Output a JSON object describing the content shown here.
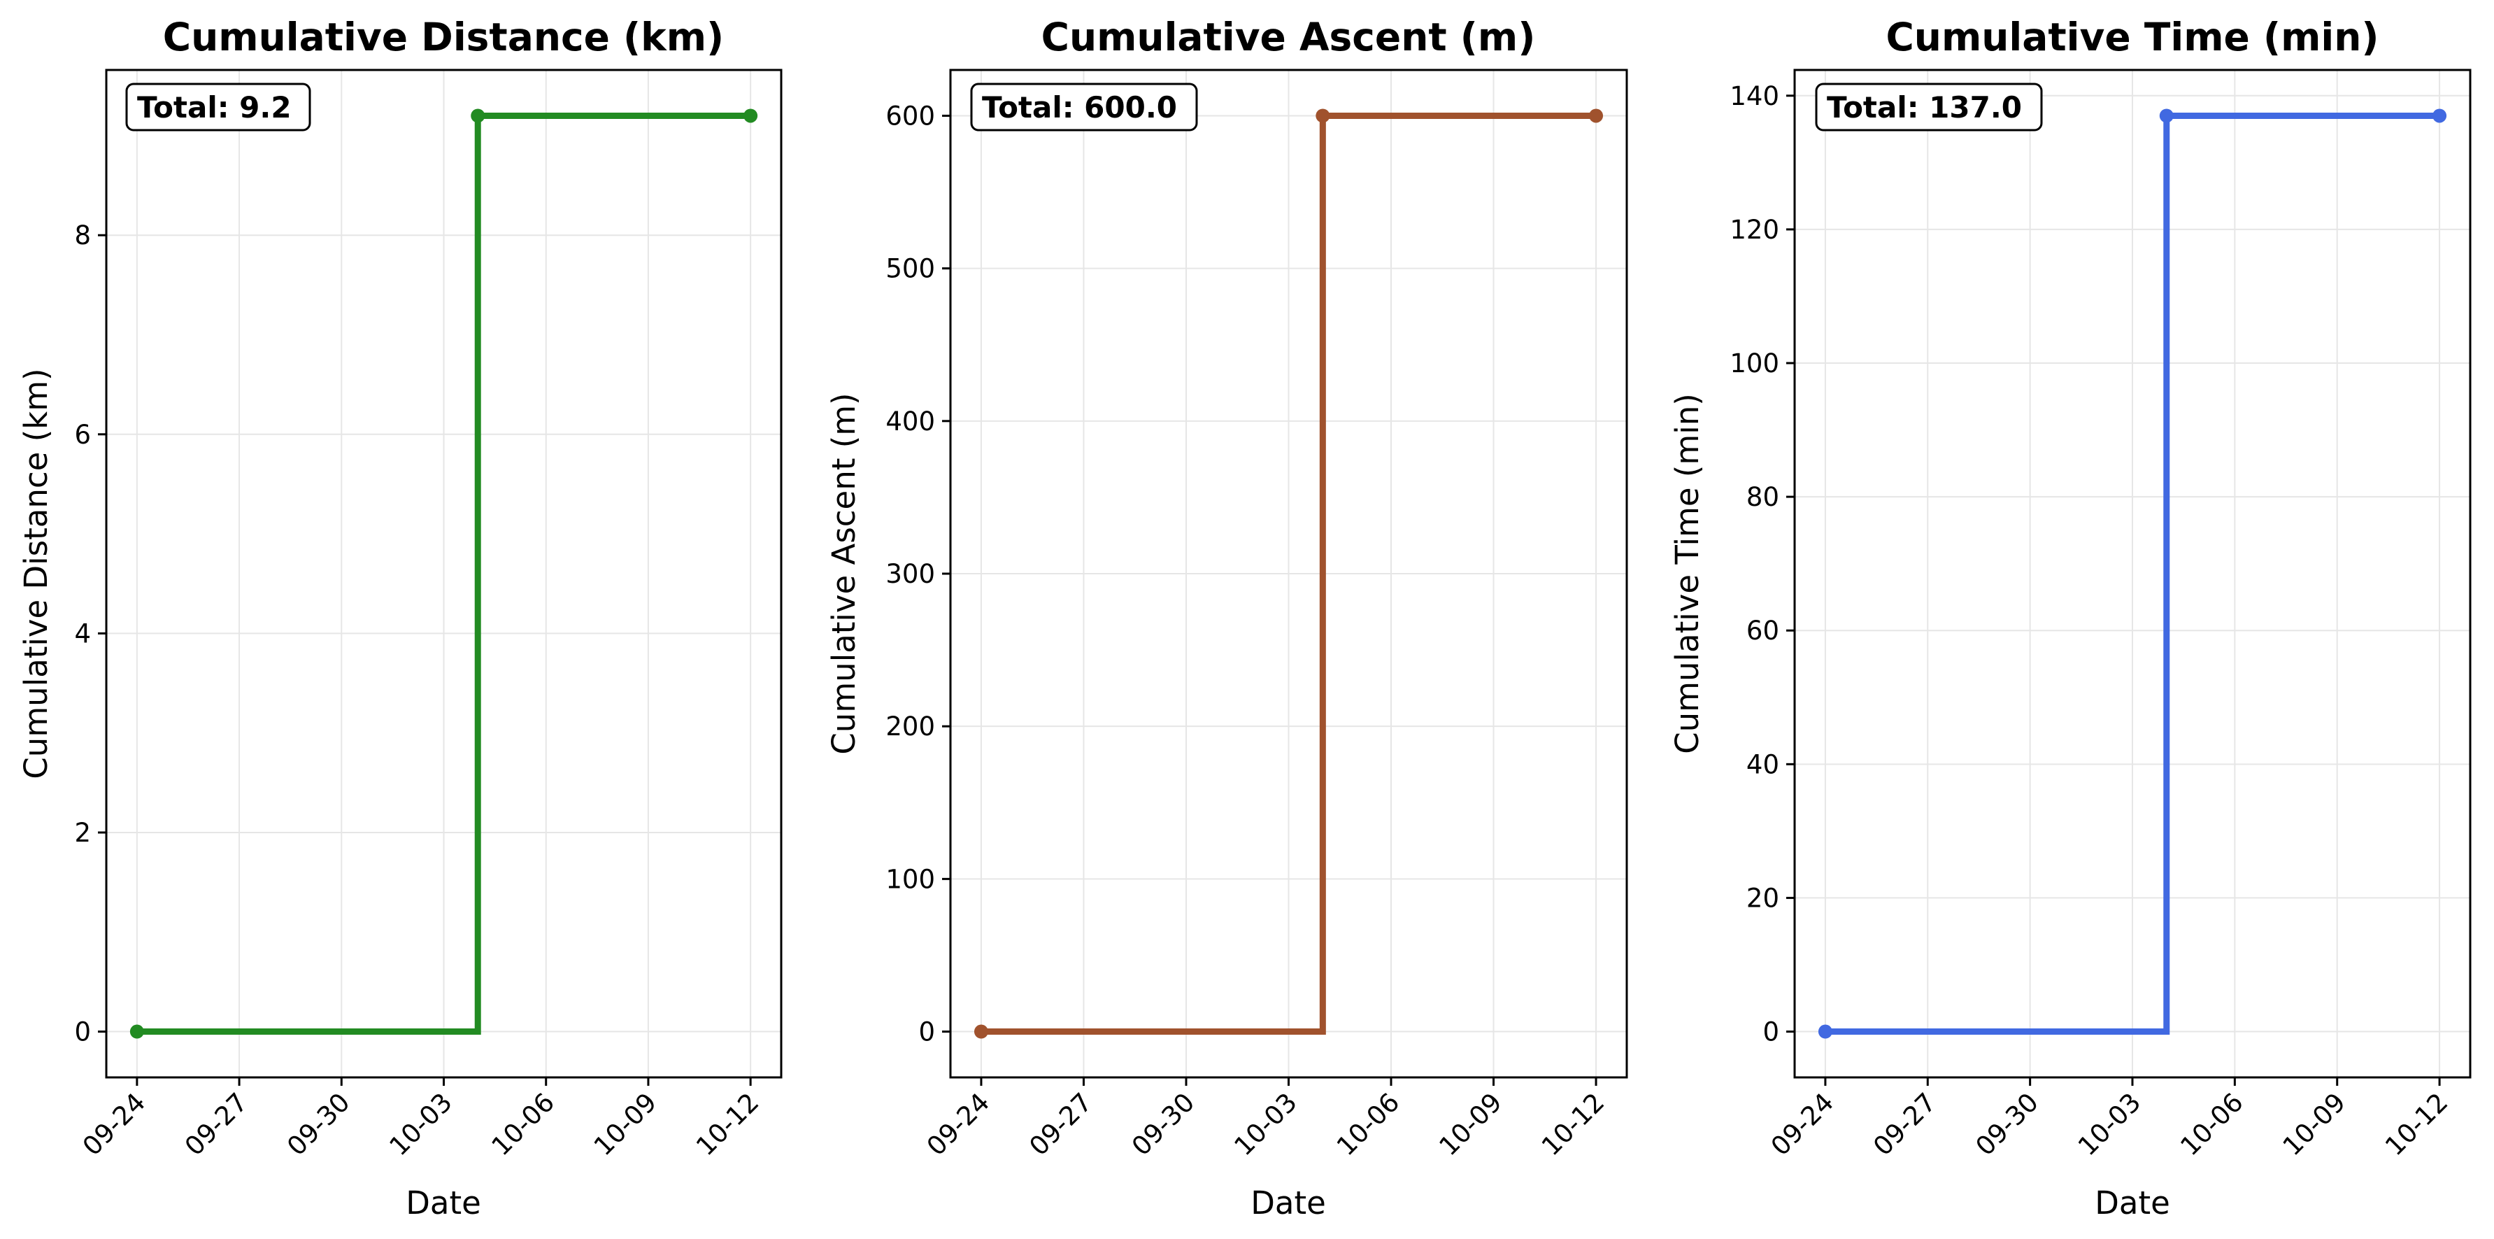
{
  "chart_data": [
    {
      "type": "line",
      "title": "Cumulative Distance (km)",
      "xlabel": "Date",
      "ylabel": "Cumulative Distance (km)",
      "color": "#228b22",
      "x": [
        "09-24",
        "10-04",
        "10-12"
      ],
      "y": [
        0,
        9.2,
        9.2
      ],
      "step": "post",
      "x_ticks": [
        "09-24",
        "09-27",
        "09-30",
        "10-03",
        "10-06",
        "10-09",
        "10-12"
      ],
      "y_ticks": [
        0,
        2,
        4,
        6,
        8
      ],
      "y_tick_labels": [
        "0",
        "2",
        "4",
        "6",
        "8"
      ],
      "ylim": [
        -0.46,
        9.66
      ],
      "total_label": "Total: 9.2",
      "grid": true
    },
    {
      "type": "line",
      "title": "Cumulative Ascent (m)",
      "xlabel": "Date",
      "ylabel": "Cumulative Ascent (m)",
      "color": "#a0522d",
      "x": [
        "09-24",
        "10-04",
        "10-12"
      ],
      "y": [
        0,
        600,
        600
      ],
      "step": "post",
      "x_ticks": [
        "09-24",
        "09-27",
        "09-30",
        "10-03",
        "10-06",
        "10-09",
        "10-12"
      ],
      "y_ticks": [
        0,
        100,
        200,
        300,
        400,
        500,
        600
      ],
      "y_tick_labels": [
        "0",
        "100",
        "200",
        "300",
        "400",
        "500",
        "600"
      ],
      "ylim": [
        -30,
        630
      ],
      "total_label": "Total: 600.0",
      "grid": true
    },
    {
      "type": "line",
      "title": "Cumulative Time (min)",
      "xlabel": "Date",
      "ylabel": "Cumulative Time (min)",
      "color": "#4169e1",
      "x": [
        "09-24",
        "10-04",
        "10-12"
      ],
      "y": [
        0,
        137,
        137
      ],
      "step": "post",
      "x_ticks": [
        "09-24",
        "09-27",
        "09-30",
        "10-03",
        "10-06",
        "10-09",
        "10-12"
      ],
      "y_ticks": [
        0,
        20,
        40,
        60,
        80,
        100,
        120,
        140
      ],
      "y_tick_labels": [
        "0",
        "20",
        "40",
        "60",
        "80",
        "100",
        "120",
        "140"
      ],
      "ylim": [
        -6.85,
        143.85
      ],
      "total_label": "Total: 137.0",
      "grid": true
    }
  ]
}
